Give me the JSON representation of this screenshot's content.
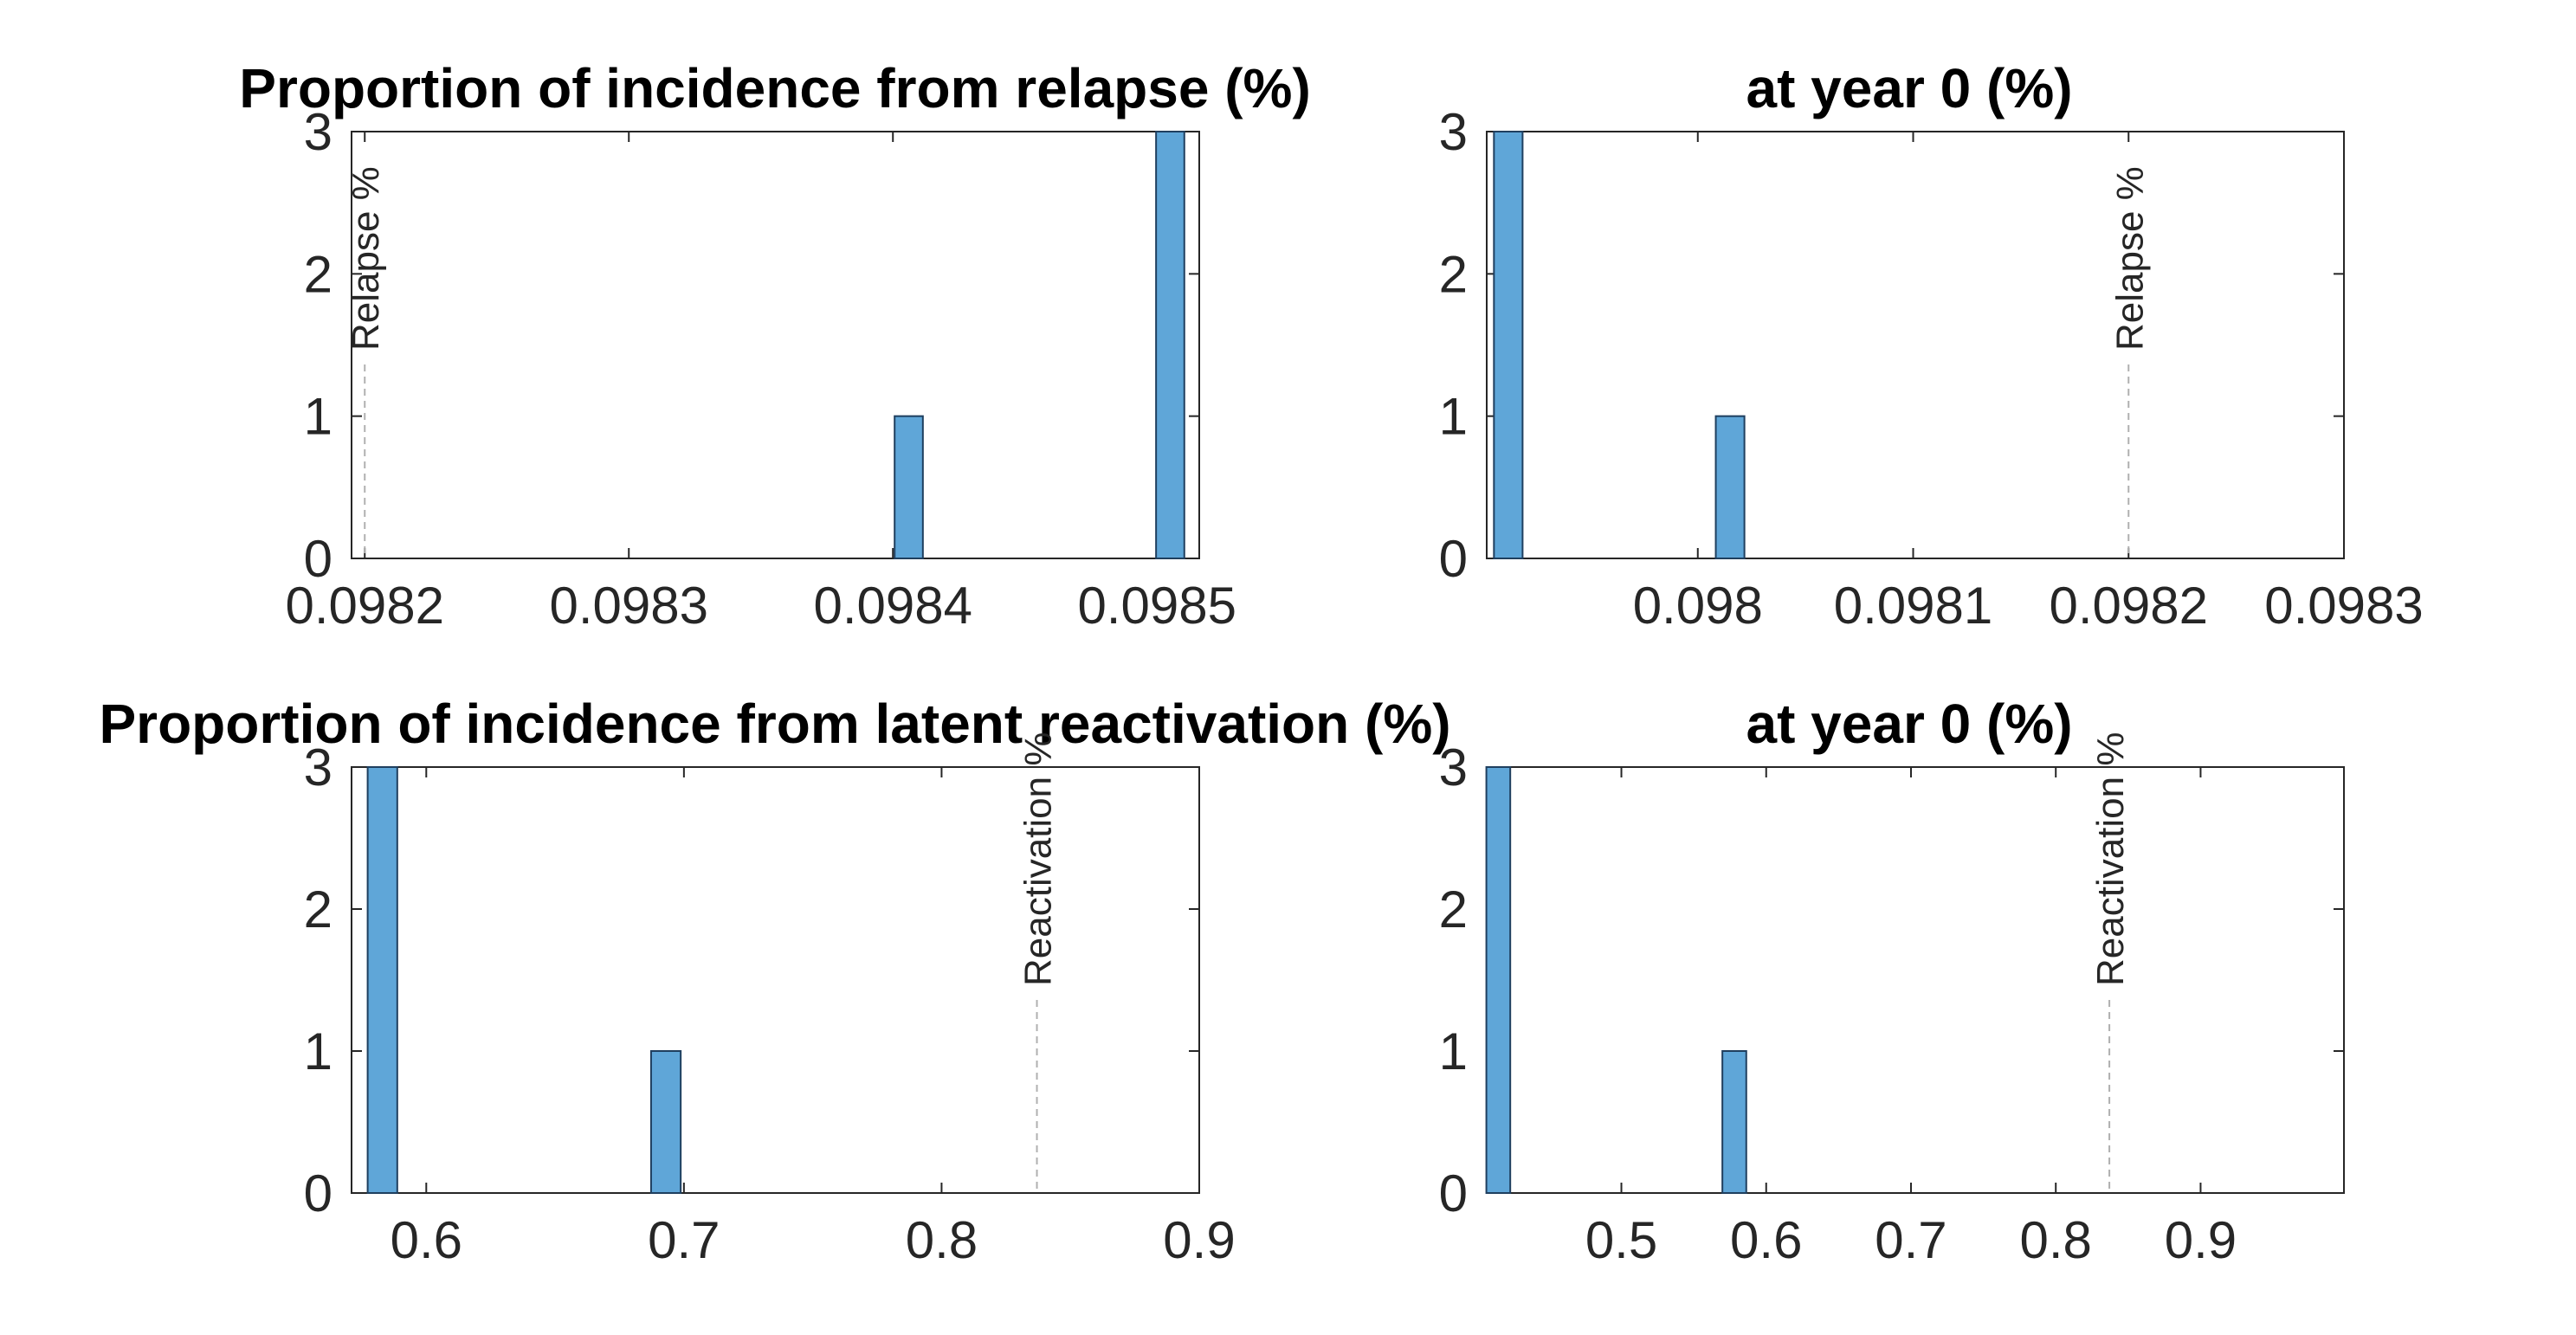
{
  "colors": {
    "bar_fill": "#5fa6d8",
    "bar_stroke": "#1f3f5f",
    "axis": "#262626",
    "ref_line": "#b0b0b0"
  },
  "chart_data": [
    {
      "type": "bar",
      "title": "Proportion of incidence from relapse (%)",
      "xlim": [
        0.098195,
        0.098516
      ],
      "ylim": [
        0,
        3
      ],
      "xticks": [
        "0.0982",
        "0.0983",
        "0.0984",
        "0.0985"
      ],
      "yticks": [
        "0",
        "1",
        "2",
        "3"
      ],
      "bins": [
        {
          "x": 0.098406,
          "value": 1
        },
        {
          "x": 0.098505,
          "value": 3
        }
      ],
      "bin_width": 1.07e-05,
      "reference": {
        "x": 0.0982,
        "label": "Relapse %"
      }
    },
    {
      "type": "bar",
      "title": "at year 0 (%)",
      "xlim": [
        0.097902,
        0.0983
      ],
      "ylim": [
        0,
        3
      ],
      "xticks": [
        "0.098",
        "0.0981",
        "0.0982",
        "0.0983"
      ],
      "yticks": [
        "0",
        "1",
        "2",
        "3"
      ],
      "bins": [
        {
          "x": 0.097912,
          "value": 3
        },
        {
          "x": 0.098015,
          "value": 1
        }
      ],
      "bin_width": 1.33e-05,
      "reference": {
        "x": 0.0982,
        "label": "Relapse %"
      }
    },
    {
      "type": "bar",
      "title": "Proportion of incidence from latent reactivation (%)",
      "xlim": [
        0.571,
        0.9
      ],
      "ylim": [
        0,
        3
      ],
      "xticks": [
        "0.6",
        "0.7",
        "0.8",
        "0.9"
      ],
      "yticks": [
        "0",
        "1",
        "2",
        "3"
      ],
      "bins": [
        {
          "x": 0.583,
          "value": 3
        },
        {
          "x": 0.693,
          "value": 1
        }
      ],
      "bin_width": 0.0115,
      "reference": {
        "x": 0.837,
        "label": "Reactivation %"
      }
    },
    {
      "type": "bar",
      "title": "at year 0 (%)",
      "xlim": [
        0.407,
        0.999
      ],
      "ylim": [
        0,
        3
      ],
      "xticks": [
        "0.5",
        "0.6",
        "0.7",
        "0.8",
        "0.9"
      ],
      "yticks": [
        "0",
        "1",
        "2",
        "3"
      ],
      "bins": [
        {
          "x": 0.415,
          "value": 3
        },
        {
          "x": 0.578,
          "value": 1
        }
      ],
      "bin_width": 0.0165,
      "reference": {
        "x": 0.837,
        "label": "Reactivation %"
      }
    }
  ]
}
